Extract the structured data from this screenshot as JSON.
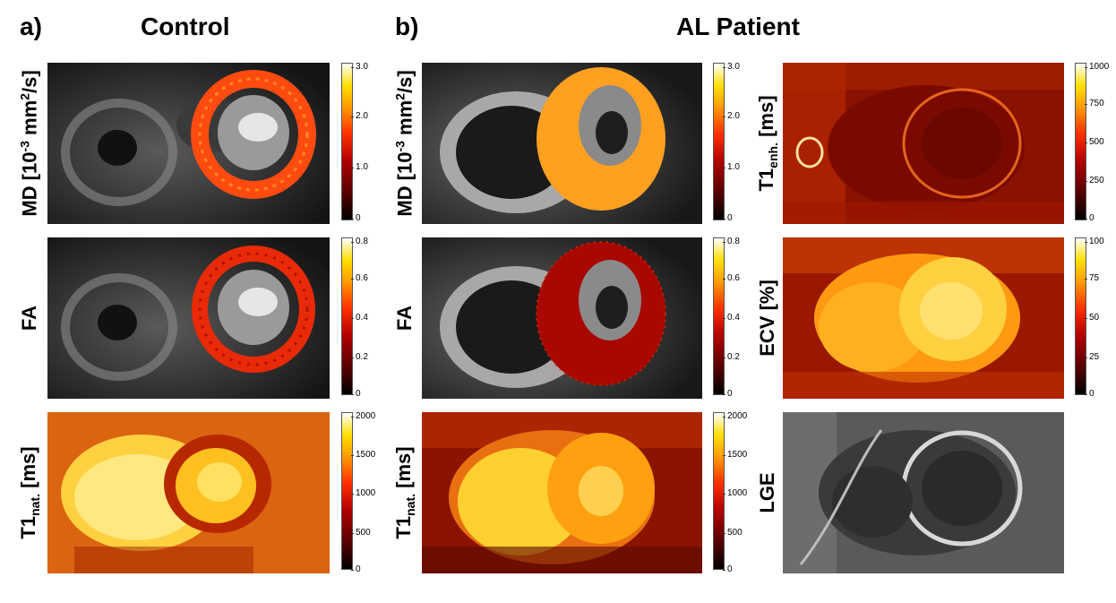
{
  "panels": {
    "a": {
      "letter": "a)",
      "title": "Control"
    },
    "b": {
      "letter": "b)",
      "title": "AL Patient"
    }
  },
  "row_labels": {
    "md_main": "MD [10",
    "md_sup": "-3",
    "md_mid": " mm",
    "md_sup2": "2",
    "md_end": "/s]",
    "fa": "FA",
    "t1nat_main": "T1",
    "t1nat_sub": "nat.",
    "t1nat_unit": " [ms]",
    "t1enh_main": "T1",
    "t1enh_sub": "enh.",
    "t1enh_unit": " [ms]",
    "ecv": "ECV [%]",
    "lge": "LGE"
  },
  "colorbars": {
    "md": [
      "3.0",
      "2.0",
      "1.0",
      "0"
    ],
    "fa": [
      "0.8",
      "0.6",
      "0.4",
      "0.2",
      "0"
    ],
    "t1nat": [
      "2000",
      "1500",
      "1000",
      "500",
      "0"
    ],
    "t1enh": [
      "1000",
      "750",
      "500",
      "250",
      "0"
    ],
    "ecv": [
      "100",
      "75",
      "50",
      "25",
      "0"
    ]
  },
  "colormap": {
    "low": "#000000",
    "mid": "#ff3000",
    "high": "#ffffff"
  }
}
